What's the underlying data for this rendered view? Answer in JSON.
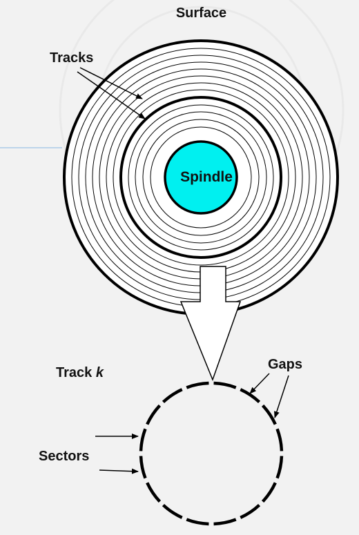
{
  "labels": {
    "surface": "Surface",
    "tracks": "Tracks",
    "spindle": "Spindle",
    "track_prefix": "Track ",
    "track_var": "k",
    "gaps": "Gaps",
    "sectors": "Sectors"
  },
  "colors": {
    "background": "#f2f2f2",
    "spindle": "#00f0f0",
    "stroke": "#000000",
    "disk_fill": "#ffffff"
  },
  "diagram": {
    "thin_track_count": 8,
    "sector_count": 16
  }
}
